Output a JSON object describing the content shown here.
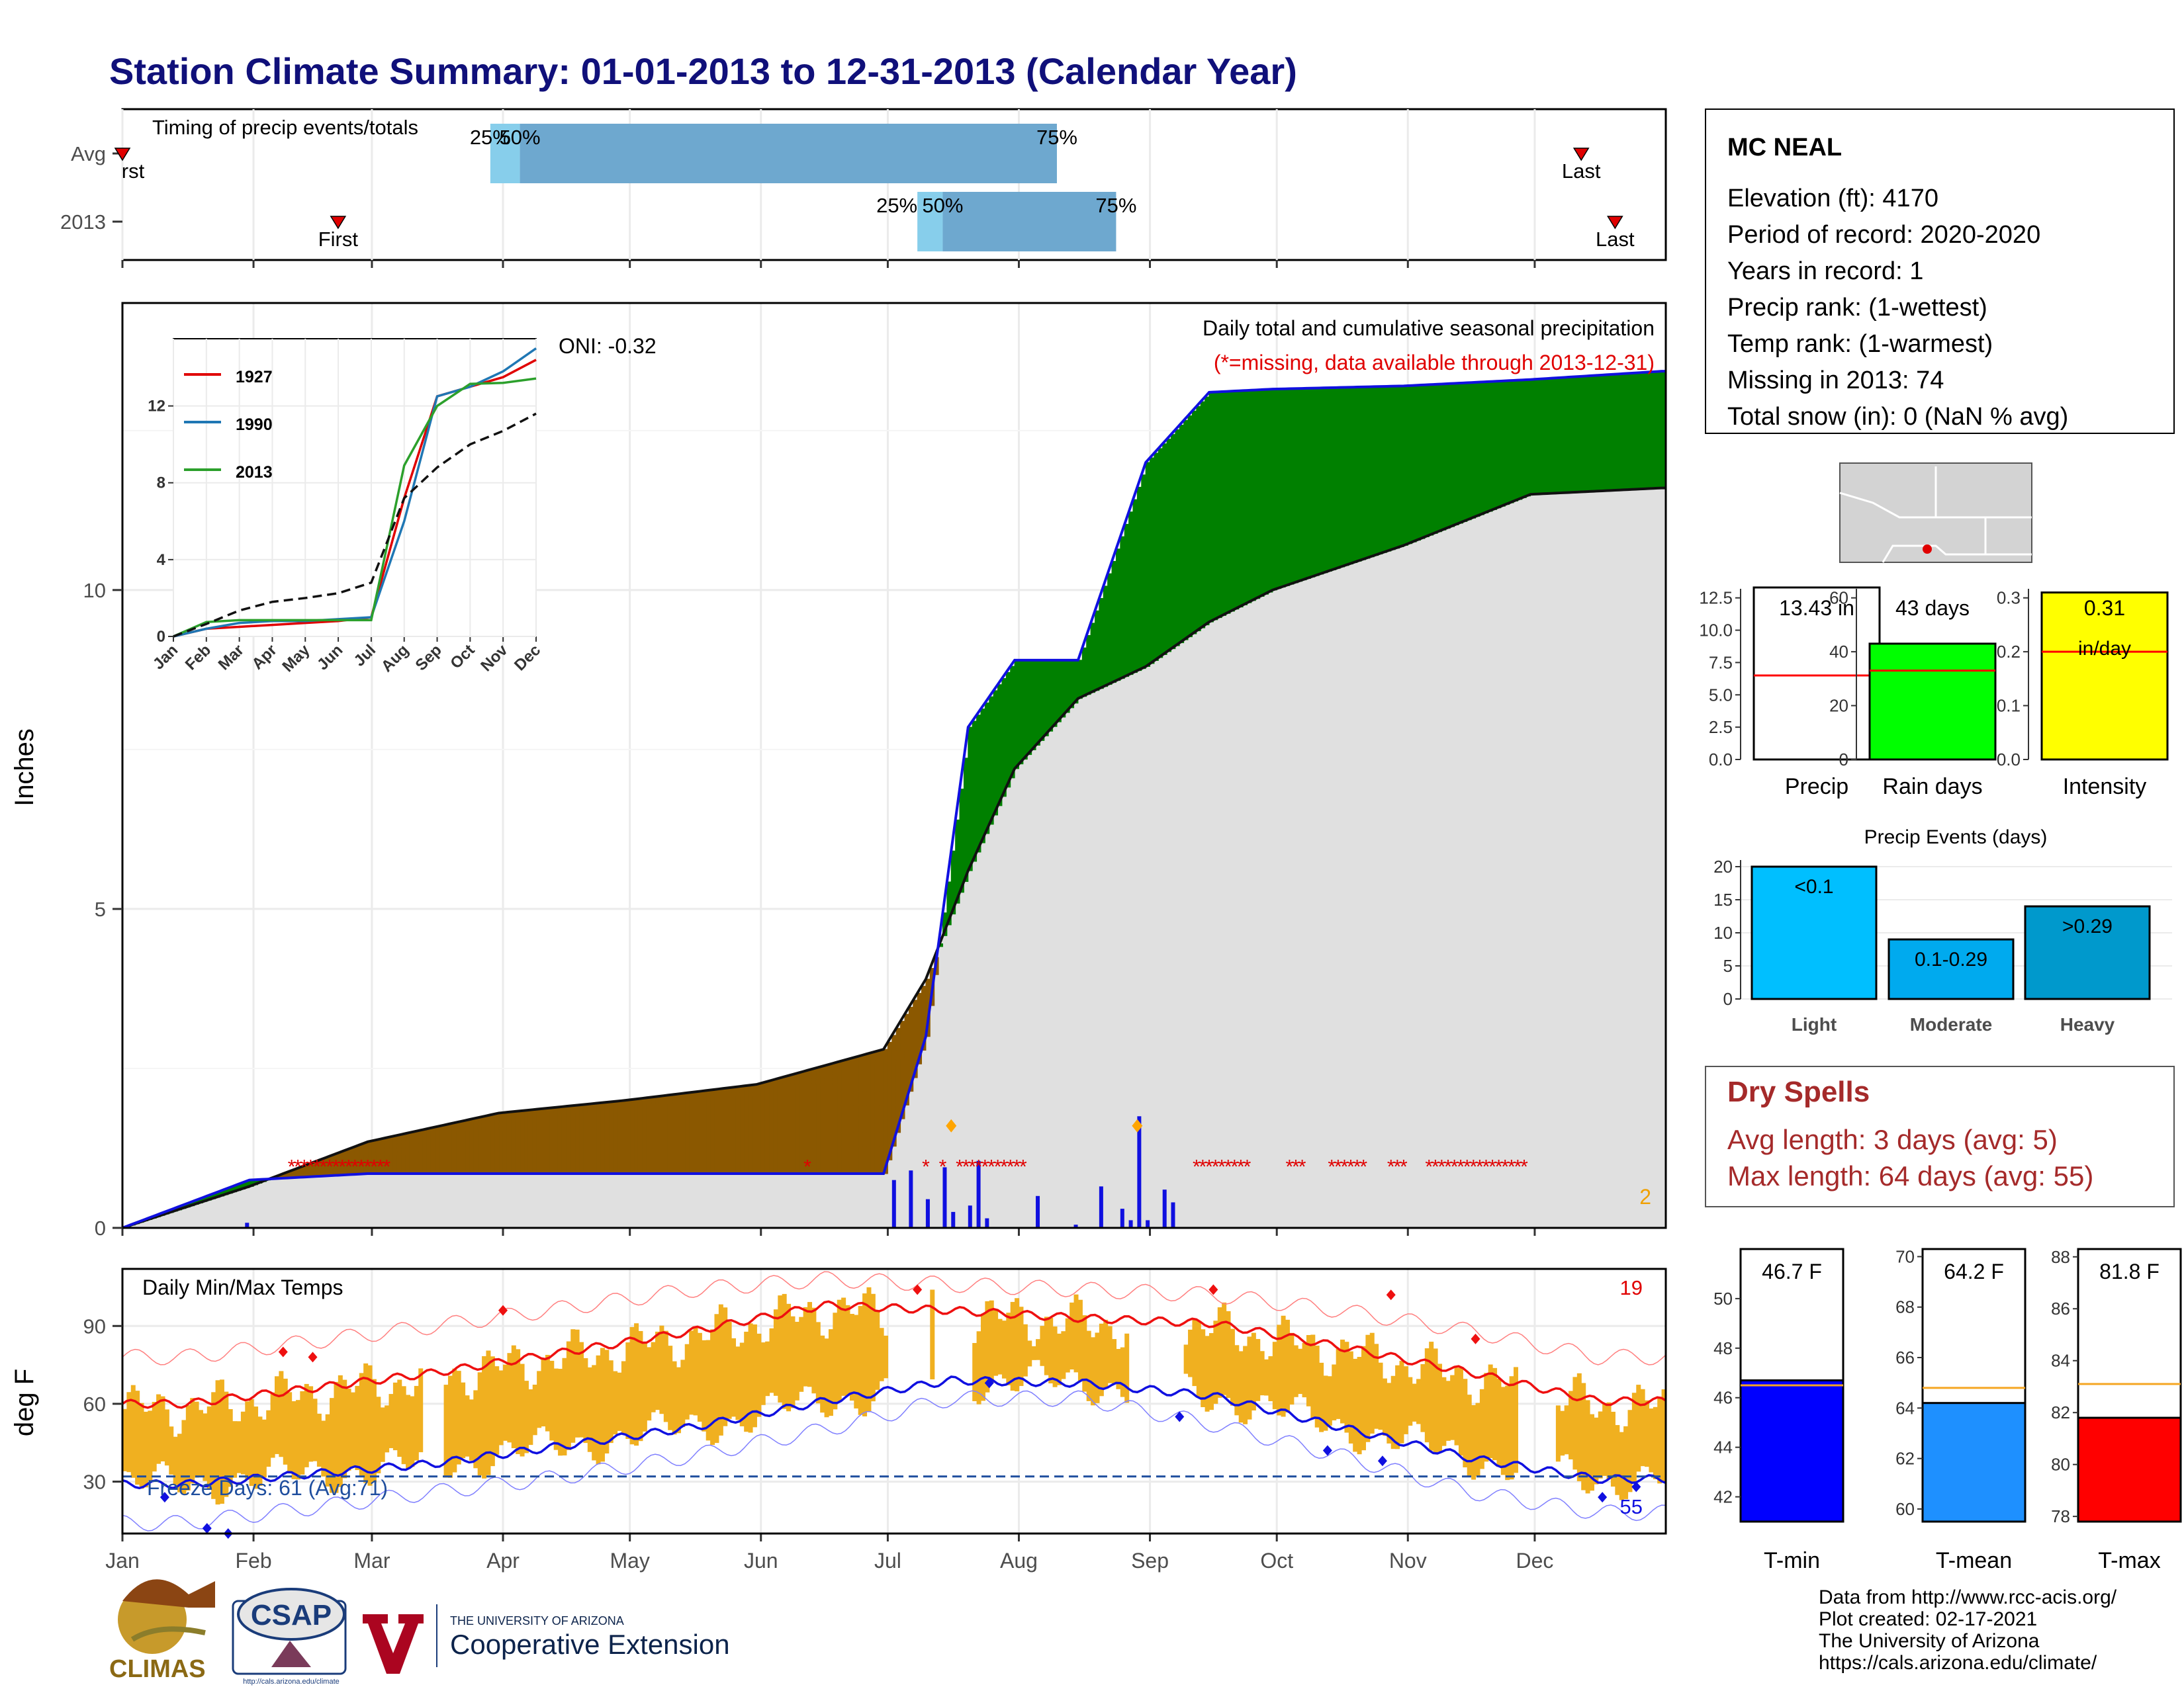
{
  "title": "Station Climate Summary: 01-01-2013 to 12-31-2013 (Calendar Year)",
  "colors": {
    "title": "#10107a",
    "accent_red": "#e00000",
    "green": "#008000",
    "brown": "#8b5800",
    "grey_fill": "#e0e0e0",
    "blue": "#1010e0",
    "orange": "#f0b020"
  },
  "timing": {
    "label": "Timing of precip events/totals",
    "rows": [
      {
        "label": "Avg",
        "first_text": "rst",
        "last_text": "Last",
        "p25": "25%",
        "p50": "50%",
        "p75": "75%"
      },
      {
        "label": "2013",
        "first_text": "First",
        "last_text": "Last",
        "p25": "25%",
        "p50": "50%",
        "p75": "75%"
      }
    ]
  },
  "precip": {
    "ylabel": "Inches",
    "oni": "ONI: -0.32",
    "title": "Daily total and cumulative seasonal precipitation",
    "subtitle": "(*=missing, data available through 2013-12-31)",
    "corner_value": "2",
    "yticks": [
      "0",
      "5",
      "10"
    ],
    "inset": {
      "legend": [
        "1927",
        "1990",
        "2013"
      ],
      "yticks": [
        "0",
        "4",
        "8",
        "12"
      ],
      "months": [
        "Jan",
        "Feb",
        "Mar",
        "Apr",
        "May",
        "Jun",
        "Jul",
        "Aug",
        "Sep",
        "Oct",
        "Nov",
        "Dec"
      ]
    }
  },
  "temps": {
    "ylabel": "deg F",
    "title": "Daily Min/Max Temps",
    "corner_top": "19",
    "corner_bottom": "55",
    "freeze_label": "Freeze Days: 61 (Avg:71)",
    "yticks": [
      "30",
      "60",
      "90"
    ]
  },
  "months": [
    "Jan",
    "Feb",
    "Mar",
    "Apr",
    "May",
    "Jun",
    "Jul",
    "Aug",
    "Sep",
    "Oct",
    "Nov",
    "Dec"
  ],
  "station": {
    "name": "MC NEAL",
    "lines": [
      "Elevation (ft): 4170",
      "Period of record: 2020-2020",
      "Years in record: 1",
      "Precip rank:  (1-wettest)",
      "Temp rank:  (1-warmest)",
      "Missing in 2013: 74",
      "Total snow (in): 0 (NaN % avg)"
    ]
  },
  "mini_bars": [
    {
      "label": "Precip",
      "value_text": "13.43 in",
      "value": 13.43,
      "avg": 6.5,
      "ymax": 12.5,
      "yticks": [
        "0.0",
        "2.5",
        "5.0",
        "7.5",
        "10.0",
        "12.5"
      ],
      "color": "#ffffff"
    },
    {
      "label": "Rain days",
      "value_text": "43 days",
      "value": 43,
      "avg": 33,
      "ymax": 60,
      "yticks": [
        "0",
        "20",
        "40",
        "60"
      ],
      "color": "#00ff00"
    },
    {
      "label": "Intensity",
      "value_text": "0.31",
      "unit_text": "in/day",
      "value": 0.31,
      "avg": 0.2,
      "ymax": 0.3,
      "yticks": [
        "0.0",
        "0.1",
        "0.2",
        "0.3"
      ],
      "color": "#ffff00"
    }
  ],
  "events": {
    "title": "Precip Events (days)",
    "yticks": [
      "0",
      "5",
      "10",
      "15",
      "20"
    ],
    "bars": [
      {
        "category": "Light",
        "label": "<0.1",
        "value": 20,
        "color": "#00bfff"
      },
      {
        "category": "Moderate",
        "label": "0.1-0.29",
        "value": 9,
        "color": "#00aaee"
      },
      {
        "category": "Heavy",
        "label": ">0.29",
        "value": 14,
        "color": "#0099cc"
      }
    ]
  },
  "dry_spells": {
    "title": "Dry Spells",
    "avg_line": "Avg length: 3 days (avg: 5)",
    "max_line": "Max length: 64 days (avg: 55)"
  },
  "temp_bars": [
    {
      "label": "T-min",
      "value_text": "46.7 F",
      "value": 46.7,
      "avg": 46.5,
      "ymin": 41,
      "ymax": 52,
      "ticks": [
        42,
        44,
        46,
        48,
        50
      ],
      "color": "#0000ff"
    },
    {
      "label": "T-mean",
      "value_text": "64.2 F",
      "value": 64.2,
      "avg": 64.8,
      "ymin": 59.5,
      "ymax": 70.3,
      "ticks": [
        60,
        62,
        64,
        66,
        68,
        70
      ],
      "color": "#1e90ff"
    },
    {
      "label": "T-max",
      "value_text": "81.8 F",
      "value": 81.8,
      "avg": 83.1,
      "ymin": 77.8,
      "ymax": 88.3,
      "ticks": [
        78,
        80,
        82,
        84,
        86,
        88
      ],
      "color": "#ff0000"
    }
  ],
  "footer": {
    "lines": [
      "Data from http://www.rcc-acis.org/",
      "Plot created: 02-17-2021",
      "The University of Arizona",
      "https://cals.arizona.edu/climate/"
    ],
    "logo_climas": "CLIMAS",
    "logo_csap": "CSAP",
    "logo_csap_url": "http://cals.arizona.edu/climate",
    "ua_small": "THE UNIVERSITY OF ARIZONA",
    "ua_big": "Cooperative Extension"
  },
  "chart_data": [
    {
      "type": "bar",
      "title": "Timing of precip events/totals",
      "categories": [
        "Avg",
        "2013"
      ],
      "series": [
        {
          "name": "25%",
          "values": [
            "2013-03-29",
            "2013-07-08"
          ]
        },
        {
          "name": "50%",
          "values": [
            "2013-04-05",
            "2013-07-14"
          ]
        },
        {
          "name": "75%",
          "values": [
            "2013-08-10",
            "2013-08-24"
          ]
        }
      ],
      "first": [
        "2013-01-01",
        "2013-02-21"
      ],
      "last": [
        "2013-12-12",
        "2013-12-20"
      ]
    },
    {
      "type": "area",
      "title": "Daily total and cumulative seasonal precipitation",
      "ylabel": "Inches",
      "ylim": [
        0,
        14.5
      ],
      "x": [
        "2013-01-01",
        "2013-01-31",
        "2013-02-28",
        "2013-03-31",
        "2013-04-30",
        "2013-05-31",
        "2013-06-30",
        "2013-07-10",
        "2013-07-20",
        "2013-07-31",
        "2013-08-15",
        "2013-08-31",
        "2013-09-15",
        "2013-09-30",
        "2013-10-31",
        "2013-11-30",
        "2013-12-31"
      ],
      "series": [
        {
          "name": "2013",
          "values": [
            0,
            0.75,
            0.85,
            0.85,
            0.85,
            0.85,
            0.85,
            3.0,
            7.85,
            8.9,
            8.9,
            12.0,
            13.1,
            13.15,
            13.2,
            13.3,
            13.43
          ]
        },
        {
          "name": "avg",
          "values": [
            0,
            0.65,
            1.35,
            1.8,
            2.0,
            2.25,
            2.8,
            3.9,
            5.6,
            7.2,
            8.3,
            8.8,
            9.5,
            10.0,
            10.7,
            11.5,
            11.6
          ]
        }
      ],
      "daily_precip": {
        "dates": [
          "2013-01-30",
          "2013-07-02",
          "2013-07-06",
          "2013-07-10",
          "2013-07-14",
          "2013-07-16",
          "2013-07-20",
          "2013-07-22",
          "2013-07-24",
          "2013-08-05",
          "2013-08-14",
          "2013-08-20",
          "2013-08-25",
          "2013-08-27",
          "2013-08-29",
          "2013-08-31",
          "2013-09-04",
          "2013-09-06"
        ],
        "values": [
          0.08,
          0.75,
          0.9,
          0.45,
          0.95,
          0.25,
          0.35,
          1.05,
          0.15,
          0.5,
          0.05,
          0.65,
          0.3,
          0.12,
          1.75,
          0.12,
          0.6,
          0.4
        ]
      },
      "missing_dates": [
        "2013-02-10",
        "2013-06-12",
        "2013-07-12",
        "2013-07-18",
        "2013-08-05",
        "2013-09-12",
        "2013-10-05",
        "2013-10-20",
        "2013-11-02",
        "2013-11-10",
        "2013-11-30"
      ]
    },
    {
      "type": "line",
      "title": "inset cumulative precip",
      "x": [
        "Jan",
        "Feb",
        "Mar",
        "Apr",
        "May",
        "Jun",
        "Jul",
        "Aug",
        "Sep",
        "Oct",
        "Nov",
        "Dec"
      ],
      "series": [
        {
          "name": "1927",
          "values": [
            0,
            0.4,
            0.5,
            0.6,
            0.7,
            0.8,
            1.0,
            7.2,
            12.5,
            13.0,
            13.5,
            14.4
          ]
        },
        {
          "name": "1990",
          "values": [
            0,
            0.4,
            0.7,
            0.8,
            0.8,
            0.9,
            1.0,
            6.0,
            12.5,
            13.0,
            13.8,
            15.0
          ]
        },
        {
          "name": "2013",
          "values": [
            0,
            0.75,
            0.85,
            0.85,
            0.85,
            0.85,
            0.85,
            8.9,
            12.0,
            13.15,
            13.2,
            13.43
          ]
        },
        {
          "name": "avg",
          "values": [
            0,
            0.65,
            1.35,
            1.8,
            2.0,
            2.25,
            2.8,
            7.2,
            8.8,
            10.0,
            10.7,
            11.6
          ]
        }
      ],
      "yticks": [
        0,
        4,
        8,
        12
      ]
    },
    {
      "type": "line",
      "title": "Daily Min/Max Temps",
      "ylabel": "deg F",
      "ylim": [
        10,
        112
      ],
      "x": [
        "Jan",
        "Feb",
        "Mar",
        "Apr",
        "May",
        "Jun",
        "Jul",
        "Aug",
        "Sep",
        "Oct",
        "Nov",
        "Dec"
      ],
      "series": [
        {
          "name": "avg max",
          "values": [
            60,
            66,
            72,
            80,
            88,
            98,
            96,
            93,
            91,
            82,
            72,
            61
          ]
        },
        {
          "name": "avg min",
          "values": [
            26,
            30,
            34,
            41,
            48,
            58,
            66,
            65,
            60,
            48,
            36,
            28
          ]
        },
        {
          "name": "record max",
          "values": [
            78,
            84,
            90,
            97,
            104,
            108,
            106,
            104,
            102,
            96,
            88,
            78
          ]
        },
        {
          "name": "record min",
          "values": [
            10,
            16,
            22,
            28,
            36,
            46,
            58,
            58,
            48,
            36,
            22,
            14
          ]
        }
      ],
      "freeze_line": 32
    }
  ]
}
